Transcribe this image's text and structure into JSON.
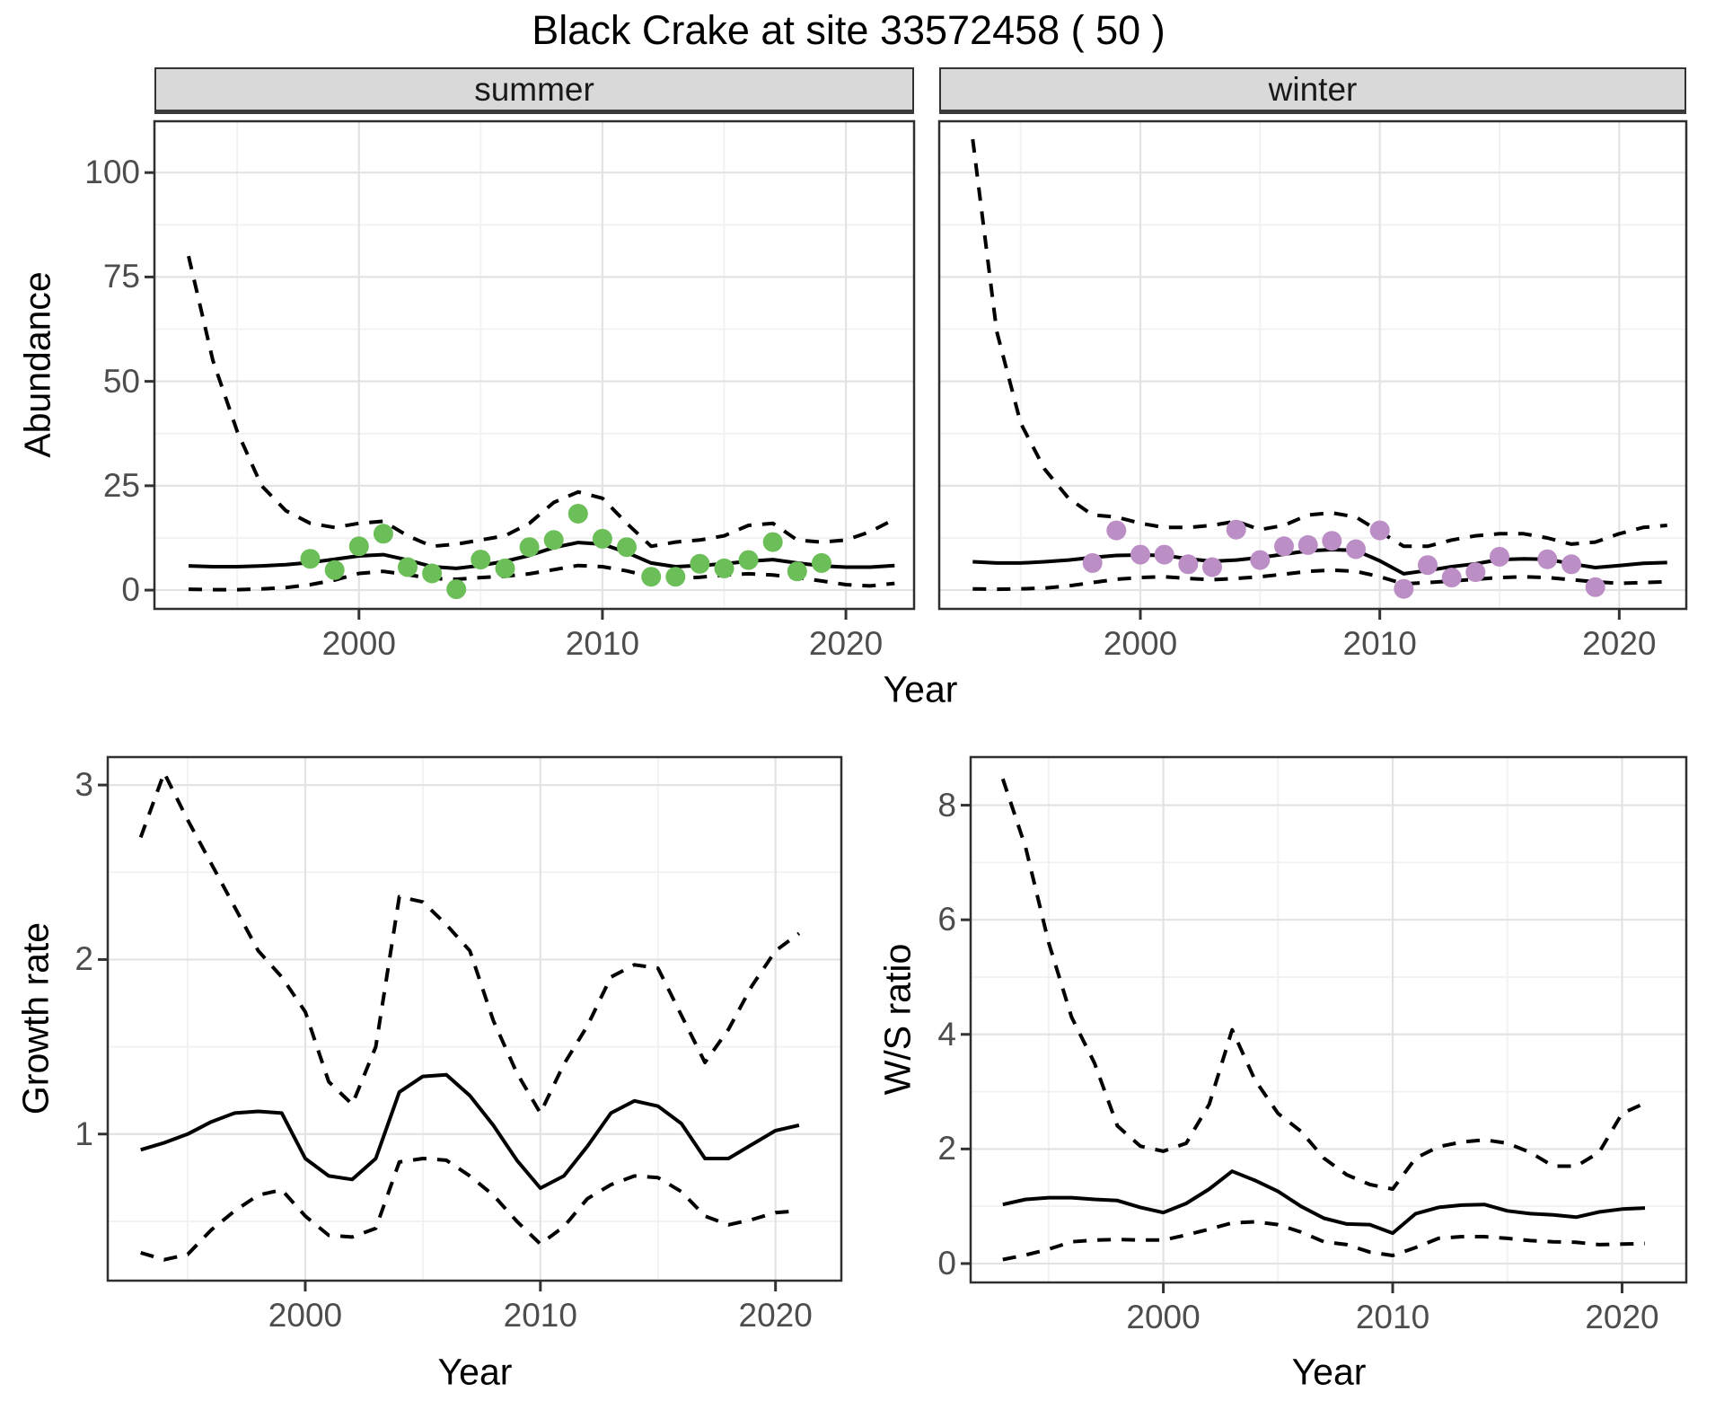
{
  "title": "Black Crake at site 33572458 ( 50 )",
  "colors": {
    "summer_points": "#6CBE58",
    "winter_points": "#BC8EC6",
    "line": "#000000",
    "grid_major": "#E3E3E3",
    "grid_minor": "#F1F1F1",
    "strip_bg": "#D9D9D9",
    "panel_border": "#2F2F2F",
    "tick_text": "#4D4D4D",
    "tick_mark": "#333333"
  },
  "labels": {
    "abundance_axis": "Abundance",
    "growth_axis": "Growth rate",
    "ws_axis": "W/S ratio",
    "year_axis_top": "Year",
    "year_axis_growth": "Year",
    "year_axis_ws": "Year",
    "facet_summer": "summer",
    "facet_winter": "winter"
  },
  "chart_data": [
    {
      "id": "summer",
      "type": "line",
      "facet_label": "summer",
      "xlabel": "Year",
      "ylabel": "Abundance",
      "xlim": [
        1991.6,
        2022.8
      ],
      "ylim": [
        -4.5,
        112.3
      ],
      "x_ticks": [
        2000,
        2010,
        2020
      ],
      "y_ticks": [
        0,
        25,
        50,
        75,
        100
      ],
      "x_minor": [
        1995,
        2005,
        2015
      ],
      "y_minor": [
        12.5,
        37.5,
        62.5,
        87.5
      ],
      "x": [
        1993,
        1994,
        1995,
        1996,
        1997,
        1998,
        1999,
        2000,
        2001,
        2002,
        2003,
        2004,
        2005,
        2006,
        2007,
        2008,
        2009,
        2010,
        2011,
        2012,
        2013,
        2014,
        2015,
        2016,
        2017,
        2018,
        2019,
        2020,
        2021,
        2022
      ],
      "series": [
        {
          "name": "upper_95ci",
          "style": "dashed",
          "values": [
            80,
            55,
            38,
            25,
            19,
            16,
            15,
            16,
            16.5,
            13,
            10.5,
            11,
            12,
            13,
            16,
            21,
            23.5,
            22,
            16,
            10.5,
            11.5,
            12,
            13,
            15.5,
            16,
            12,
            11.5,
            12,
            14,
            17
          ]
        },
        {
          "name": "mean",
          "style": "solid",
          "values": [
            5.8,
            5.6,
            5.6,
            5.8,
            6.1,
            6.6,
            7.4,
            8.2,
            8.5,
            7.2,
            5.6,
            5.2,
            5.9,
            6.9,
            8.3,
            10.2,
            11.4,
            11.0,
            9.0,
            6.5,
            5.6,
            5.9,
            6.3,
            6.9,
            7.3,
            6.5,
            5.8,
            5.5,
            5.5,
            5.9
          ]
        },
        {
          "name": "lower_95ci",
          "style": "dashed",
          "values": [
            0.2,
            0.1,
            0.1,
            0.3,
            0.6,
            1.3,
            2.4,
            4.0,
            4.5,
            3.7,
            2.8,
            2.6,
            3.0,
            3.3,
            3.9,
            4.9,
            5.9,
            5.6,
            4.6,
            3.2,
            2.8,
            3.1,
            3.6,
            3.9,
            3.6,
            3.0,
            2.2,
            1.3,
            1.0,
            1.6
          ]
        }
      ],
      "points": {
        "name": "observed-abundance-summer",
        "color_key": "summer_points",
        "x": [
          1998,
          1999,
          2000,
          2001,
          2002,
          2003,
          2004,
          2005,
          2006,
          2007,
          2008,
          2009,
          2010,
          2011,
          2012,
          2013,
          2014,
          2015,
          2016,
          2017,
          2018,
          2019
        ],
        "y": [
          7.5,
          4.8,
          10.5,
          13.5,
          5.5,
          4,
          0.2,
          7.3,
          5.2,
          10.3,
          12,
          18.3,
          12.3,
          10.3,
          3.2,
          3.2,
          6.3,
          5.2,
          7.2,
          11.5,
          4.5,
          6.5
        ]
      }
    },
    {
      "id": "winter",
      "type": "line",
      "facet_label": "winter",
      "xlabel": "Year",
      "ylabel": "Abundance",
      "xlim": [
        1991.6,
        2022.8
      ],
      "ylim": [
        -4.5,
        112.3
      ],
      "x_ticks": [
        2000,
        2010,
        2020
      ],
      "y_ticks": [
        0,
        25,
        50,
        75,
        100
      ],
      "x_minor": [
        1995,
        2005,
        2015
      ],
      "y_minor": [
        12.5,
        37.5,
        62.5,
        87.5
      ],
      "x": [
        1993,
        1994,
        1995,
        1996,
        1997,
        1998,
        1999,
        2000,
        2001,
        2002,
        2003,
        2004,
        2005,
        2006,
        2007,
        2008,
        2009,
        2010,
        2011,
        2012,
        2013,
        2014,
        2015,
        2016,
        2017,
        2018,
        2019,
        2020,
        2021,
        2022
      ],
      "series": [
        {
          "name": "upper_95ci",
          "style": "dashed",
          "values": [
            108,
            62,
            40,
            29,
            22,
            18,
            17.5,
            16,
            15,
            15,
            15.5,
            16.5,
            14.5,
            15.5,
            18,
            18.5,
            17.5,
            14,
            10.5,
            10.5,
            12,
            13,
            13.5,
            13.5,
            12.5,
            11,
            11.5,
            13.5,
            15,
            15.5
          ]
        },
        {
          "name": "mean",
          "style": "solid",
          "values": [
            6.8,
            6.5,
            6.5,
            6.8,
            7.2,
            7.8,
            8.3,
            8.4,
            8.3,
            7.5,
            6.9,
            7.2,
            7.8,
            8.6,
            9.4,
            9.7,
            9.5,
            7.0,
            3.9,
            4.7,
            5.6,
            6.3,
            7.3,
            7.5,
            7.4,
            6.3,
            5.4,
            5.9,
            6.4,
            6.6
          ]
        },
        {
          "name": "lower_95ci",
          "style": "dashed",
          "values": [
            0.3,
            0.2,
            0.3,
            0.5,
            1.0,
            1.8,
            2.6,
            3.0,
            3.2,
            2.8,
            2.5,
            2.8,
            3.2,
            3.8,
            4.5,
            4.8,
            4.5,
            3.2,
            1.5,
            1.8,
            2.2,
            2.6,
            3.0,
            3.2,
            3.0,
            2.5,
            2.0,
            1.6,
            1.8,
            2.0
          ]
        }
      ],
      "points": {
        "name": "observed-abundance-winter",
        "color_key": "winter_points",
        "x": [
          1998,
          1999,
          2000,
          2001,
          2002,
          2003,
          2004,
          2005,
          2006,
          2007,
          2008,
          2009,
          2010,
          2011,
          2012,
          2013,
          2014,
          2015,
          2017,
          2018,
          2019
        ],
        "y": [
          6.5,
          14.3,
          8.5,
          8.5,
          6.2,
          5.5,
          14.5,
          7.2,
          10.5,
          10.8,
          11.8,
          9.8,
          14.3,
          0.3,
          6,
          3,
          4.3,
          8,
          7.4,
          6.2,
          0.7
        ]
      }
    },
    {
      "id": "growth",
      "type": "line",
      "facet_label": "",
      "xlabel": "Year",
      "ylabel": "Growth rate",
      "xlim": [
        1991.6,
        2022.8
      ],
      "ylim": [
        0.16,
        3.16
      ],
      "x_ticks": [
        2000,
        2010,
        2020
      ],
      "y_ticks": [
        1,
        2,
        3
      ],
      "x_minor": [
        1995,
        2005,
        2015
      ],
      "y_minor": [
        0.5,
        1.5,
        2.5
      ],
      "x": [
        1993,
        1994,
        1995,
        1996,
        1997,
        1998,
        1999,
        2000,
        2001,
        2002,
        2003,
        2004,
        2005,
        2006,
        2007,
        2008,
        2009,
        2010,
        2011,
        2012,
        2013,
        2014,
        2015,
        2016,
        2017,
        2018,
        2019,
        2020,
        2021
      ],
      "series": [
        {
          "name": "upper_95ci",
          "style": "dashed",
          "values": [
            2.7,
            3.07,
            2.8,
            2.55,
            2.3,
            2.05,
            1.9,
            1.7,
            1.3,
            1.17,
            1.5,
            2.36,
            2.33,
            2.2,
            2.05,
            1.65,
            1.35,
            1.12,
            1.4,
            1.62,
            1.9,
            1.97,
            1.95,
            1.68,
            1.41,
            1.6,
            1.85,
            2.05,
            2.15
          ]
        },
        {
          "name": "mean",
          "style": "solid",
          "values": [
            0.91,
            0.95,
            1.0,
            1.07,
            1.12,
            1.13,
            1.12,
            0.86,
            0.76,
            0.74,
            0.86,
            1.24,
            1.33,
            1.34,
            1.22,
            1.05,
            0.85,
            0.69,
            0.76,
            0.93,
            1.12,
            1.19,
            1.16,
            1.06,
            0.86,
            0.86,
            0.94,
            1.02,
            1.05
          ]
        },
        {
          "name": "lower_95ci",
          "style": "dashed",
          "values": [
            0.32,
            0.28,
            0.31,
            0.45,
            0.56,
            0.65,
            0.68,
            0.53,
            0.42,
            0.41,
            0.46,
            0.84,
            0.86,
            0.85,
            0.76,
            0.65,
            0.5,
            0.37,
            0.47,
            0.63,
            0.71,
            0.76,
            0.75,
            0.67,
            0.53,
            0.48,
            0.51,
            0.55,
            0.56
          ]
        }
      ],
      "points": null
    },
    {
      "id": "ws",
      "type": "line",
      "facet_label": "",
      "xlabel": "Year",
      "ylabel": "W/S ratio",
      "xlim": [
        1991.6,
        2022.8
      ],
      "ylim": [
        -0.33,
        8.84
      ],
      "x_ticks": [
        2000,
        2010,
        2020
      ],
      "y_ticks": [
        0,
        2,
        4,
        6,
        8
      ],
      "x_minor": [
        1995,
        2005,
        2015
      ],
      "y_minor": [
        1,
        3,
        5,
        7
      ],
      "x": [
        1993,
        1994,
        1995,
        1996,
        1997,
        1998,
        1999,
        2000,
        2001,
        2002,
        2003,
        2004,
        2005,
        2006,
        2007,
        2008,
        2009,
        2010,
        2011,
        2012,
        2013,
        2014,
        2015,
        2016,
        2017,
        2018,
        2019,
        2020,
        2021
      ],
      "series": [
        {
          "name": "upper_95ci",
          "style": "dashed",
          "values": [
            8.46,
            7.26,
            5.6,
            4.3,
            3.5,
            2.4,
            2.05,
            1.96,
            2.1,
            2.78,
            4.08,
            3.2,
            2.62,
            2.31,
            1.84,
            1.55,
            1.38,
            1.3,
            1.84,
            2.04,
            2.12,
            2.16,
            2.1,
            1.94,
            1.7,
            1.7,
            1.94,
            2.62,
            2.8
          ]
        },
        {
          "name": "mean",
          "style": "solid",
          "values": [
            1.03,
            1.12,
            1.15,
            1.15,
            1.12,
            1.1,
            0.98,
            0.89,
            1.05,
            1.3,
            1.61,
            1.45,
            1.26,
            1.0,
            0.79,
            0.69,
            0.68,
            0.53,
            0.87,
            0.98,
            1.02,
            1.03,
            0.92,
            0.87,
            0.85,
            0.81,
            0.9,
            0.95,
            0.97
          ]
        },
        {
          "name": "lower_95ci",
          "style": "dashed",
          "values": [
            0.07,
            0.15,
            0.25,
            0.38,
            0.41,
            0.42,
            0.41,
            0.41,
            0.5,
            0.6,
            0.71,
            0.73,
            0.68,
            0.55,
            0.38,
            0.33,
            0.2,
            0.14,
            0.28,
            0.44,
            0.47,
            0.47,
            0.44,
            0.4,
            0.38,
            0.37,
            0.33,
            0.34,
            0.35
          ]
        }
      ],
      "points": null
    }
  ]
}
